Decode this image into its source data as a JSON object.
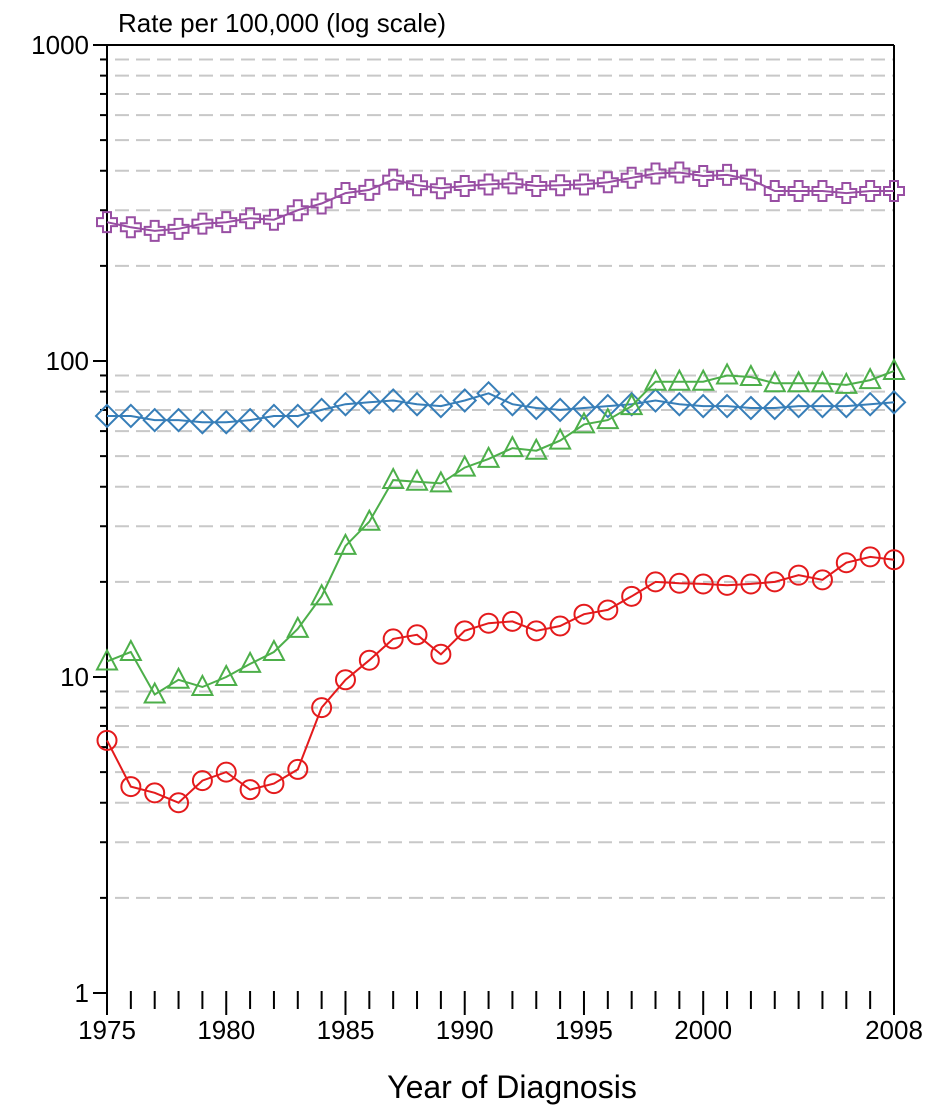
{
  "chart_data": {
    "type": "line",
    "ylabel": "Rate per 100,000 (log scale)",
    "xlabel": "Year of Diagnosis",
    "x": [
      1975,
      1976,
      1977,
      1978,
      1979,
      1980,
      1981,
      1982,
      1983,
      1984,
      1985,
      1986,
      1987,
      1988,
      1989,
      1990,
      1991,
      1992,
      1993,
      1994,
      1995,
      1996,
      1997,
      1998,
      1999,
      2000,
      2001,
      2002,
      2003,
      2004,
      2005,
      2006,
      2007,
      2008
    ],
    "xlim": [
      1975,
      2008
    ],
    "ylim": [
      1,
      1000
    ],
    "yscale": "log",
    "x_ticks_major": [
      1975,
      1980,
      1985,
      1990,
      1995,
      2000,
      2008
    ],
    "x_tick_labels": [
      "1975",
      "1980",
      "1985",
      "1990",
      "1995",
      "2000",
      "2008"
    ],
    "y_ticks": [
      1,
      10,
      100,
      1000
    ],
    "y_tick_labels": [
      "1",
      "10",
      "100",
      "1000"
    ],
    "grid": "horizontal dashed at minor log ticks",
    "series": [
      {
        "color": "#984ea3",
        "marker": "cross",
        "values": [
          275,
          265,
          258,
          262,
          272,
          275,
          283,
          280,
          300,
          315,
          340,
          348,
          375,
          360,
          352,
          358,
          362,
          365,
          358,
          360,
          362,
          368,
          380,
          392,
          395,
          385,
          388,
          375,
          345,
          345,
          345,
          340,
          345,
          345
        ]
      },
      {
        "color": "#377eb8",
        "marker": "diamond",
        "values": [
          67,
          67,
          65,
          65,
          64,
          64,
          65,
          67,
          67,
          70,
          73,
          74,
          75,
          73,
          72,
          75,
          79,
          73,
          71,
          70,
          71,
          72,
          73,
          75,
          73,
          72,
          72,
          71,
          71,
          72,
          72,
          72,
          73,
          74
        ]
      },
      {
        "color": "#4daf4a",
        "marker": "triangle",
        "values": [
          11.2,
          12.0,
          8.8,
          9.8,
          9.3,
          10.0,
          11.0,
          12.0,
          14.2,
          18.0,
          26.0,
          31.0,
          42.0,
          41.5,
          41.0,
          46.0,
          49.0,
          53.0,
          52.0,
          56.0,
          63.0,
          65.0,
          72.0,
          86.0,
          86.0,
          86.0,
          90.0,
          89.0,
          85.0,
          85.0,
          85.0,
          84.0,
          87.0,
          93.0
        ]
      },
      {
        "color": "#e41a1c",
        "marker": "circle",
        "values": [
          6.3,
          4.5,
          4.3,
          4.0,
          4.7,
          5.0,
          4.4,
          4.6,
          5.1,
          8.0,
          9.8,
          11.3,
          13.2,
          13.6,
          11.8,
          14.0,
          14.8,
          15.0,
          14.0,
          14.5,
          15.8,
          16.3,
          18.0,
          20.0,
          19.8,
          19.7,
          19.5,
          19.7,
          20.0,
          21.0,
          20.3,
          23.0,
          24.0,
          23.5
        ]
      }
    ]
  }
}
